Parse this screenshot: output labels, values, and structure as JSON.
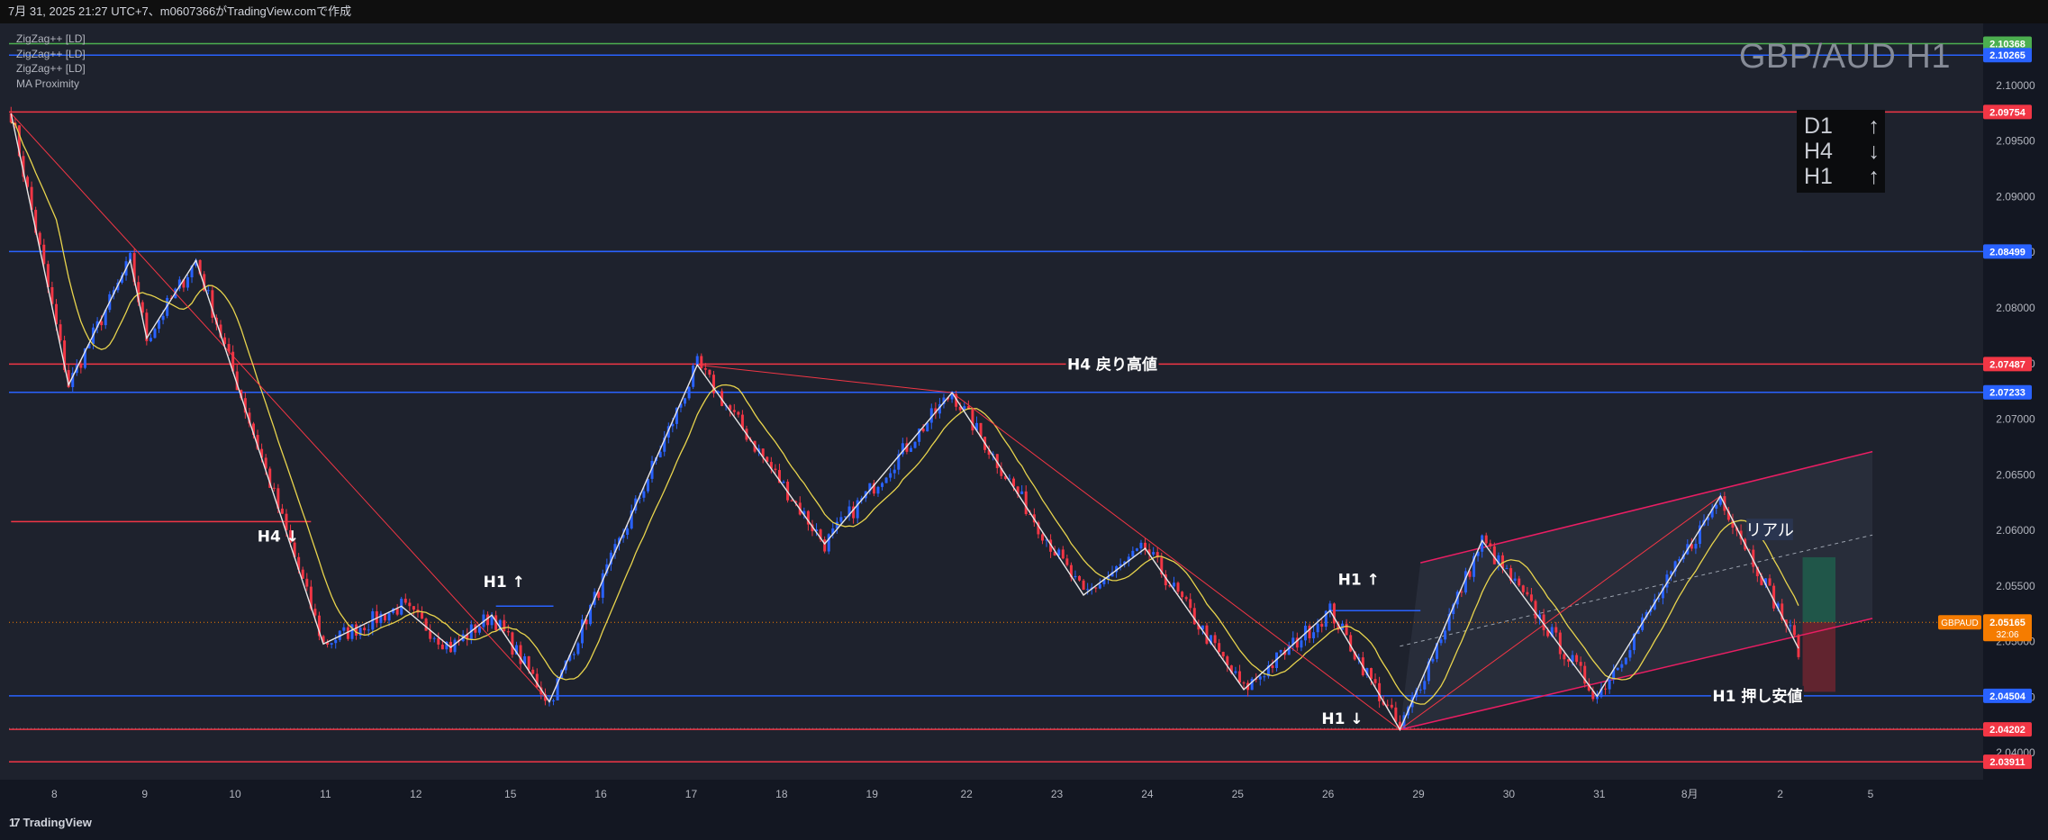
{
  "header": {
    "attribution": "7月 31, 2025 21:27 UTC+7、m0607366がTradingView.comで作成"
  },
  "indicators": [
    "ZigZag++ [LD]",
    "ZigZag++ [LD]",
    "ZigZag++ [LD]",
    "MA Proximity"
  ],
  "symbol_title": "GBP/AUD H1",
  "mtf_trend": [
    {
      "tf": "D1",
      "arrow": "↑"
    },
    {
      "tf": "H4",
      "arrow": "↓"
    },
    {
      "tf": "H1",
      "arrow": "↑"
    }
  ],
  "footer": {
    "brand": "TradingView",
    "logo_mark": "17"
  },
  "colors": {
    "up": "#2962ff",
    "down": "#f23645",
    "ma": "#e8d44d",
    "zigzag": "#e6e6e6",
    "resistance": "#f23645",
    "support": "#2962ff",
    "channel": "#e91e63",
    "last_price_tag": "#f57c00",
    "green_tag": "#4caf50",
    "profit_zone": "#1f5e4c",
    "loss_zone": "#6d2530"
  },
  "chart_data": {
    "type": "candlestick",
    "symbol": "GBPAUD",
    "timeframe": "H1",
    "last_price": "2.05165",
    "countdown": "32:06",
    "y_axis_ticks": [
      "2.10000",
      "2.09500",
      "2.09000",
      "2.08500",
      "2.08000",
      "2.07500",
      "2.07000",
      "2.06500",
      "2.06000",
      "2.05500",
      "2.05000",
      "2.04500",
      "2.04000"
    ],
    "x_axis_ticks": [
      "8",
      "9",
      "10",
      "11",
      "12",
      "15",
      "16",
      "17",
      "18",
      "19",
      "22",
      "23",
      "24",
      "25",
      "26",
      "29",
      "30",
      "31",
      "8月",
      "2",
      "5"
    ],
    "price_range": [
      2.0375,
      2.1055
    ],
    "horizontal_levels": [
      {
        "price": "2.10368",
        "value": 2.10368,
        "color": "#4caf50",
        "label": ""
      },
      {
        "price": "2.10265",
        "value": 2.10265,
        "color": "#2962ff",
        "label": ""
      },
      {
        "price": "2.09754",
        "value": 2.09754,
        "color": "#f23645",
        "label": ""
      },
      {
        "price": "2.08499",
        "value": 2.08499,
        "color": "#2962ff",
        "label": ""
      },
      {
        "price": "2.07487",
        "value": 2.07487,
        "color": "#f23645",
        "label": "H4 戻り高値"
      },
      {
        "price": "2.07233",
        "value": 2.07233,
        "color": "#2962ff",
        "label": ""
      },
      {
        "price": "2.04504",
        "value": 2.04504,
        "color": "#2962ff",
        "label": "H1 押し安値"
      },
      {
        "price": "2.04202",
        "value": 2.04202,
        "color": "#f23645",
        "label": ""
      },
      {
        "price": "2.03911",
        "value": 2.03911,
        "color": "#f23645",
        "label": ""
      }
    ],
    "annotations": [
      "H4 戻り高値",
      "H1 押し安値",
      "H4 ↓",
      "H1 ↑",
      "H1 ↑",
      "H1 ↓",
      "リアル"
    ],
    "zigzag_h1": [
      [
        0,
        2.0974
      ],
      [
        14,
        2.073
      ],
      [
        29,
        2.0842
      ],
      [
        33,
        2.0772
      ],
      [
        45,
        2.0842
      ],
      [
        76,
        2.0497
      ],
      [
        95,
        2.0531
      ],
      [
        107,
        2.0494
      ],
      [
        117,
        2.0523
      ],
      [
        131,
        2.0445
      ],
      [
        167,
        2.0748
      ],
      [
        198,
        2.0587
      ],
      [
        229,
        2.0723
      ],
      [
        261,
        2.0541
      ],
      [
        276,
        2.0583
      ],
      [
        300,
        2.0456
      ],
      [
        321,
        2.0527
      ],
      [
        338,
        2.042
      ],
      [
        358,
        2.059
      ],
      [
        386,
        2.045
      ],
      [
        416,
        2.063
      ],
      [
        435,
        2.0493
      ]
    ],
    "zigzag_h4": [
      [
        0,
        2.0974
      ],
      [
        131,
        2.0445
      ],
      [
        167,
        2.0748
      ],
      [
        229,
        2.0723
      ],
      [
        338,
        2.042
      ],
      [
        416,
        2.063
      ],
      [
        435,
        2.0493
      ]
    ],
    "swing_levels": [
      {
        "price": 2.085,
        "from_bar": 45,
        "to_bar": 436,
        "color": "#2962ff"
      },
      {
        "price": 2.0607,
        "from_bar": 0,
        "to_bar": 73,
        "color": "#f23645"
      },
      {
        "price": 2.0531,
        "from_bar": 118,
        "to_bar": 132,
        "color": "#2962ff"
      },
      {
        "price": 2.0527,
        "from_bar": 321,
        "to_bar": 343,
        "color": "#2962ff"
      }
    ],
    "channel": {
      "upper": [
        [
          343,
          2.057
        ],
        [
          453,
          2.067
        ]
      ],
      "lower": [
        [
          338,
          2.042
        ],
        [
          453,
          2.052
        ]
      ],
      "mid": [
        [
          338,
          2.0495
        ],
        [
          453,
          2.0595
        ]
      ]
    },
    "trade_box": {
      "entry": 2.05165,
      "target": 2.0575,
      "stop": 2.0454,
      "from_bar": 436,
      "to_bar": 444
    },
    "series_note": "Candles are an approximation following the zigzag swing path; MA is a smoothed moving average."
  }
}
